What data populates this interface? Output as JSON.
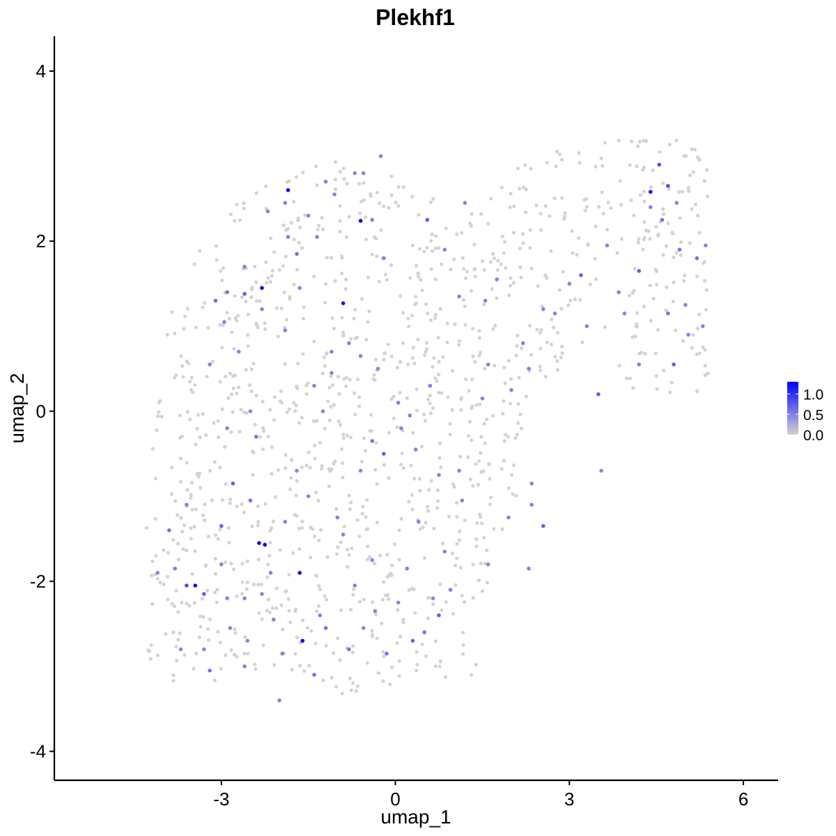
{
  "chart_data": {
    "type": "scatter",
    "title": "Plekhf1",
    "xlabel": "umap_1",
    "ylabel": "umap_2",
    "xlim": [
      -5.88,
      6.6
    ],
    "ylim": [
      -4.34,
      4.41
    ],
    "x_ticks": [
      -3,
      0,
      3,
      6
    ],
    "x_tick_labels": [
      "-3",
      "0",
      "3",
      "6"
    ],
    "y_ticks": [
      -4,
      -2,
      0,
      2,
      4
    ],
    "y_tick_labels": [
      "-4",
      "-2",
      "0",
      "2",
      "4"
    ],
    "grid": false,
    "legend_position": "right",
    "color_scale": {
      "low_color": "#d3d3d3",
      "high_color": "#0000ff",
      "min": 0,
      "max": 1.3,
      "breaks": [
        0.0,
        0.5,
        1.0
      ],
      "break_labels": [
        "0.0",
        "0.5",
        "1.0"
      ]
    },
    "points": [
      {
        "x": -1.85,
        "y": 2.6,
        "v": 1.3
      },
      {
        "x": -0.6,
        "y": 2.24,
        "v": 1.3
      },
      {
        "x": -0.9,
        "y": 1.27,
        "v": 1.2
      },
      {
        "x": -2.3,
        "y": 1.45,
        "v": 1.3
      },
      {
        "x": -2.35,
        "y": -1.55,
        "v": 1.25
      },
      {
        "x": -2.25,
        "y": -1.57,
        "v": 1.3
      },
      {
        "x": -1.65,
        "y": -1.9,
        "v": 1.25
      },
      {
        "x": -3.45,
        "y": -2.05,
        "v": 1.25
      },
      {
        "x": -1.6,
        "y": -2.7,
        "v": 1.3
      },
      {
        "x": 4.4,
        "y": 2.58,
        "v": 1.3
      },
      {
        "x": 4.55,
        "y": 2.9,
        "v": 0.9
      },
      {
        "x": 4.7,
        "y": 2.65,
        "v": 0.9
      },
      {
        "x": -2.9,
        "y": 1.4,
        "v": 0.7
      },
      {
        "x": -3.1,
        "y": 1.3,
        "v": 0.7
      },
      {
        "x": -2.6,
        "y": 1.7,
        "v": 0.6
      },
      {
        "x": -1.7,
        "y": 1.85,
        "v": 0.7
      },
      {
        "x": -2.6,
        "y": 1.38,
        "v": 0.8
      },
      {
        "x": -3.6,
        "y": -2.05,
        "v": 0.9
      },
      {
        "x": -3.3,
        "y": -2.15,
        "v": 0.8
      },
      {
        "x": -0.2,
        "y": -0.5,
        "v": 0.8
      },
      {
        "x": 0.85,
        "y": 1.9,
        "v": 0.6
      },
      {
        "x": 0.55,
        "y": 2.25,
        "v": 0.8
      },
      {
        "x": 3.2,
        "y": 1.6,
        "v": 0.8
      },
      {
        "x": 3.5,
        "y": 0.2,
        "v": 0.8
      },
      {
        "x": 4.2,
        "y": 1.65,
        "v": 0.8
      },
      {
        "x": 4.8,
        "y": 0.55,
        "v": 0.8
      },
      {
        "x": 4.9,
        "y": 1.9,
        "v": 0.7
      },
      {
        "x": 5.2,
        "y": 1.8,
        "v": 0.7
      },
      {
        "x": 5.35,
        "y": 1.95,
        "v": 0.6
      },
      {
        "x": 2.55,
        "y": -1.35,
        "v": 0.8
      },
      {
        "x": 0.3,
        "y": -2.7,
        "v": 0.8
      },
      {
        "x": 0.5,
        "y": -2.6,
        "v": 0.7
      },
      {
        "x": 0.75,
        "y": -2.4,
        "v": 0.8
      },
      {
        "x": -0.15,
        "y": -2.85,
        "v": 0.7
      },
      {
        "x": -0.8,
        "y": -2.8,
        "v": 0.7
      },
      {
        "x": -1.2,
        "y": -2.55,
        "v": 0.7
      },
      {
        "x": -1.4,
        "y": -3.1,
        "v": 0.7
      },
      {
        "x": -2.0,
        "y": -3.4,
        "v": 0.6
      },
      {
        "x": -2.6,
        "y": -3.0,
        "v": 0.6
      },
      {
        "x": -3.2,
        "y": -3.05,
        "v": 0.7
      },
      {
        "x": -3.7,
        "y": -2.8,
        "v": 0.6
      },
      {
        "x": -3.9,
        "y": -1.4,
        "v": 0.7
      },
      {
        "x": -3.6,
        "y": -1.1,
        "v": 0.6
      },
      {
        "x": -2.8,
        "y": -0.85,
        "v": 0.8
      },
      {
        "x": -2.5,
        "y": -1.05,
        "v": 0.7
      },
      {
        "x": -3.0,
        "y": -1.35,
        "v": 0.8
      },
      {
        "x": -2.4,
        "y": -0.3,
        "v": 0.7
      },
      {
        "x": -2.9,
        "y": -0.2,
        "v": 0.6
      },
      {
        "x": -2.5,
        "y": 0.0,
        "v": 0.6
      },
      {
        "x": -1.4,
        "y": 0.3,
        "v": 0.6
      },
      {
        "x": -1.1,
        "y": 0.7,
        "v": 0.6
      },
      {
        "x": -0.8,
        "y": 0.8,
        "v": 0.6
      },
      {
        "x": -0.4,
        "y": -0.35,
        "v": 0.7
      },
      {
        "x": 0.1,
        "y": -0.2,
        "v": 0.6
      },
      {
        "x": 0.35,
        "y": -0.45,
        "v": 0.6
      },
      {
        "x": -0.6,
        "y": -0.7,
        "v": 0.6
      },
      {
        "x": -1.0,
        "y": -1.25,
        "v": 0.6
      },
      {
        "x": -0.2,
        "y": 1.8,
        "v": 0.6
      },
      {
        "x": -0.4,
        "y": 2.25,
        "v": 0.6
      },
      {
        "x": -0.7,
        "y": 2.8,
        "v": 0.6
      },
      {
        "x": -1.2,
        "y": 2.7,
        "v": 0.6
      },
      {
        "x": -1.9,
        "y": 2.45,
        "v": 0.6
      },
      {
        "x": -2.2,
        "y": 2.35,
        "v": 0.6
      },
      {
        "x": 1.2,
        "y": 2.45,
        "v": 0.6
      },
      {
        "x": 1.1,
        "y": 1.35,
        "v": 0.6
      },
      {
        "x": 1.55,
        "y": 1.3,
        "v": 0.6
      },
      {
        "x": 1.75,
        "y": 1.55,
        "v": 0.6
      },
      {
        "x": 1.6,
        "y": 0.55,
        "v": 0.6
      },
      {
        "x": 2.2,
        "y": 0.8,
        "v": 0.6
      },
      {
        "x": 2.55,
        "y": 1.2,
        "v": 0.6
      },
      {
        "x": 2.75,
        "y": 1.15,
        "v": 0.6
      },
      {
        "x": 3.0,
        "y": 1.5,
        "v": 0.6
      },
      {
        "x": 3.3,
        "y": 1.0,
        "v": 0.6
      },
      {
        "x": 3.65,
        "y": 1.95,
        "v": 0.6
      },
      {
        "x": 3.85,
        "y": 1.4,
        "v": 0.6
      },
      {
        "x": 3.95,
        "y": 1.15,
        "v": 0.6
      },
      {
        "x": 4.4,
        "y": 2.4,
        "v": 0.6
      },
      {
        "x": 4.6,
        "y": 2.25,
        "v": 0.7
      },
      {
        "x": 4.85,
        "y": 2.45,
        "v": 0.6
      },
      {
        "x": 5.0,
        "y": 1.25,
        "v": 0.6
      },
      {
        "x": 4.7,
        "y": 1.15,
        "v": 0.7
      },
      {
        "x": 5.05,
        "y": 0.9,
        "v": 0.6
      },
      {
        "x": 5.3,
        "y": 1.0,
        "v": 0.6
      },
      {
        "x": 4.2,
        "y": 0.55,
        "v": 0.6
      },
      {
        "x": 3.55,
        "y": -0.7,
        "v": 0.6
      },
      {
        "x": 2.35,
        "y": -0.85,
        "v": 0.6
      },
      {
        "x": 2.35,
        "y": -1.1,
        "v": 0.6
      },
      {
        "x": 1.95,
        "y": -1.25,
        "v": 0.6
      },
      {
        "x": 2.3,
        "y": -1.85,
        "v": 0.6
      },
      {
        "x": 1.6,
        "y": -1.8,
        "v": 0.6
      },
      {
        "x": 1.1,
        "y": -0.7,
        "v": 0.6
      },
      {
        "x": 1.15,
        "y": -1.05,
        "v": 0.6
      },
      {
        "x": 0.85,
        "y": -1.65,
        "v": 0.6
      },
      {
        "x": 0.75,
        "y": -0.75,
        "v": 0.6
      },
      {
        "x": 0.4,
        "y": -1.3,
        "v": 0.6
      },
      {
        "x": 0.2,
        "y": -1.85,
        "v": 0.6
      },
      {
        "x": 0.95,
        "y": -2.1,
        "v": 0.6
      },
      {
        "x": -0.4,
        "y": -1.75,
        "v": 0.6
      },
      {
        "x": -0.7,
        "y": -2.05,
        "v": 0.6
      },
      {
        "x": -0.9,
        "y": -1.45,
        "v": 0.6
      },
      {
        "x": -1.5,
        "y": -1.0,
        "v": 0.6
      },
      {
        "x": -1.7,
        "y": -0.7,
        "v": 0.6
      },
      {
        "x": -1.9,
        "y": -1.3,
        "v": 0.6
      },
      {
        "x": -2.15,
        "y": -1.9,
        "v": 0.6
      },
      {
        "x": -2.3,
        "y": -2.15,
        "v": 0.6
      },
      {
        "x": -2.6,
        "y": -2.2,
        "v": 0.6
      },
      {
        "x": -2.9,
        "y": -2.2,
        "v": 0.6
      },
      {
        "x": -3.0,
        "y": -1.8,
        "v": 0.6
      },
      {
        "x": -3.8,
        "y": -1.85,
        "v": 0.6
      },
      {
        "x": -4.1,
        "y": -1.9,
        "v": 0.6
      },
      {
        "x": -3.3,
        "y": -2.8,
        "v": 0.6
      },
      {
        "x": -2.85,
        "y": -2.55,
        "v": 0.6
      },
      {
        "x": -2.55,
        "y": -2.7,
        "v": 0.6
      },
      {
        "x": -2.1,
        "y": -2.45,
        "v": 0.6
      },
      {
        "x": -1.95,
        "y": -2.85,
        "v": 0.6
      },
      {
        "x": -1.3,
        "y": -2.4,
        "v": 0.6
      },
      {
        "x": -0.55,
        "y": -2.55,
        "v": 0.6
      },
      {
        "x": -0.35,
        "y": -2.35,
        "v": 0.6
      },
      {
        "x": 0.05,
        "y": -2.25,
        "v": 0.6
      },
      {
        "x": 0.65,
        "y": -2.2,
        "v": 0.6
      },
      {
        "x": -3.2,
        "y": 0.55,
        "v": 0.6
      },
      {
        "x": -2.95,
        "y": 1.05,
        "v": 0.6
      },
      {
        "x": -2.7,
        "y": 0.7,
        "v": 0.6
      },
      {
        "x": -2.3,
        "y": 1.2,
        "v": 0.6
      },
      {
        "x": -1.9,
        "y": 0.95,
        "v": 0.6
      },
      {
        "x": -1.65,
        "y": 1.45,
        "v": 0.6
      },
      {
        "x": -1.85,
        "y": 2.05,
        "v": 0.6
      },
      {
        "x": -1.5,
        "y": 2.3,
        "v": 0.6
      },
      {
        "x": -1.35,
        "y": 2.05,
        "v": 0.6
      },
      {
        "x": -1.05,
        "y": 2.55,
        "v": 0.6
      },
      {
        "x": -0.55,
        "y": 2.8,
        "v": 0.6
      },
      {
        "x": -0.25,
        "y": 3.0,
        "v": 0.6
      },
      {
        "x": -1.25,
        "y": 0.0,
        "v": 0.6
      },
      {
        "x": -1.1,
        "y": 0.45,
        "v": 0.6
      },
      {
        "x": -0.6,
        "y": 0.65,
        "v": 0.6
      },
      {
        "x": -0.3,
        "y": 0.5,
        "v": 0.6
      },
      {
        "x": 0.05,
        "y": 0.1,
        "v": 0.6
      },
      {
        "x": 0.25,
        "y": -0.05,
        "v": 0.6
      },
      {
        "x": 0.6,
        "y": 0.3,
        "v": 0.6
      },
      {
        "x": 1.5,
        "y": 0.15,
        "v": 0.6
      },
      {
        "x": 2.0,
        "y": 0.25,
        "v": 0.6
      },
      {
        "x": 2.3,
        "y": 0.5,
        "v": 0.6
      }
    ],
    "background_points_seed": 20240601,
    "background_points_count": 1150
  }
}
